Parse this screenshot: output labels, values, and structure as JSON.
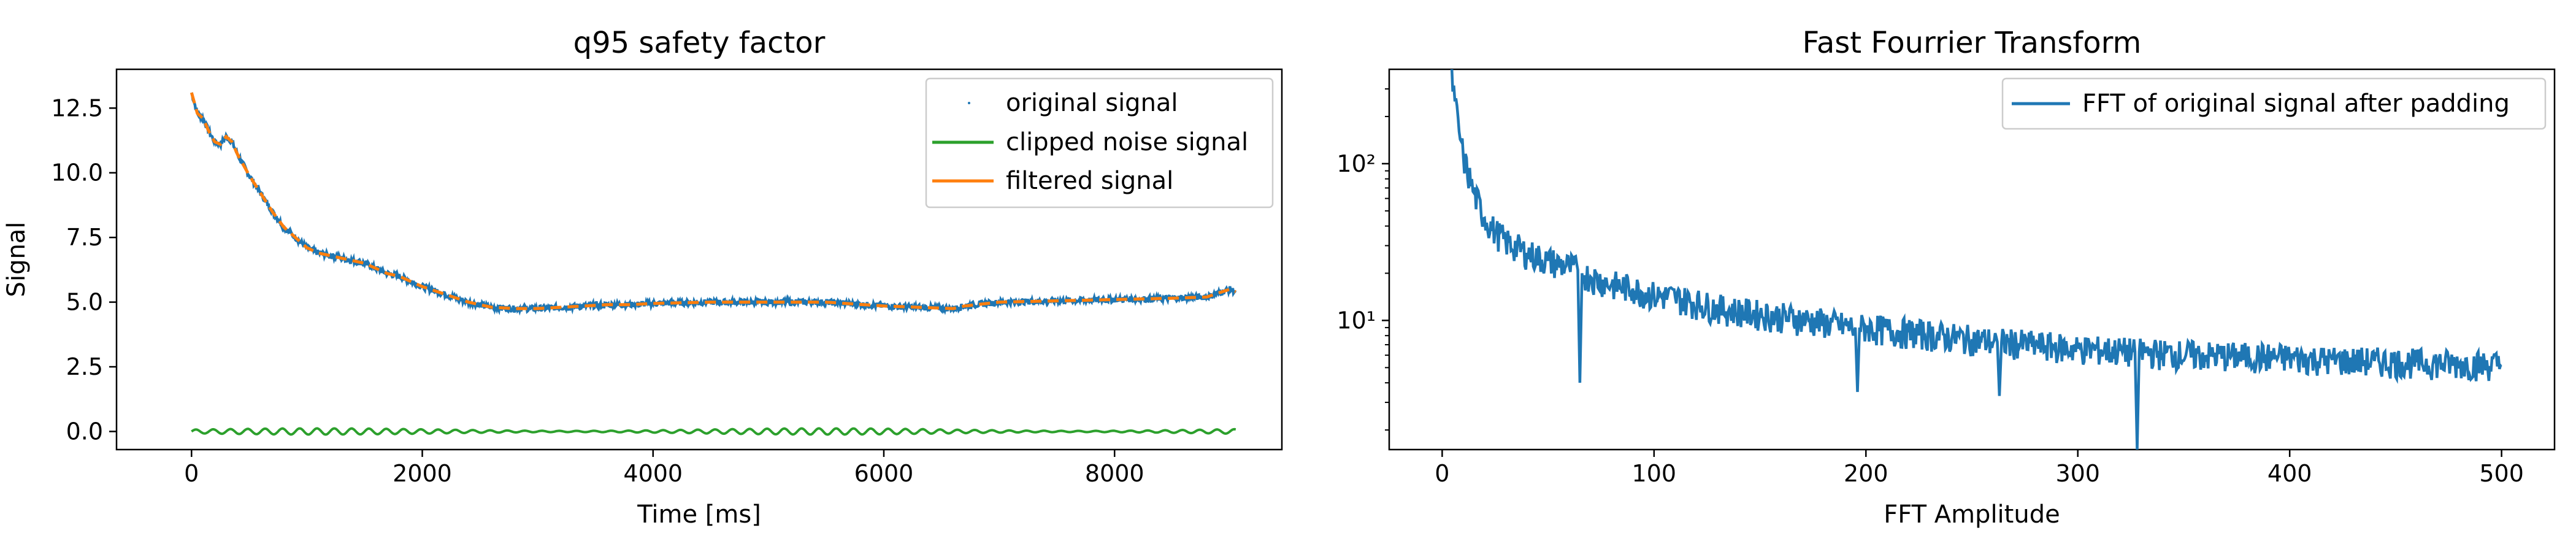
{
  "chart_data": [
    {
      "type": "line",
      "title": "q95 safety factor",
      "xlabel": "Time [ms]",
      "ylabel": "Signal",
      "xlim": [
        -650,
        9450
      ],
      "ylim": [
        -0.7,
        14.0
      ],
      "xticks": [
        0,
        2000,
        4000,
        6000,
        8000
      ],
      "xtick_labels": [
        "0",
        "2000",
        "4000",
        "6000",
        "8000"
      ],
      "yticks": [
        0.0,
        2.5,
        5.0,
        7.5,
        10.0,
        12.5
      ],
      "ytick_labels": [
        "0.0",
        "2.5",
        "5.0",
        "7.5",
        "10.0",
        "12.5"
      ],
      "grid": false,
      "legend_position": "top-right",
      "series": [
        {
          "name": "original signal",
          "style": "points",
          "color": "#1f77b4",
          "x": [
            0,
            50,
            100,
            150,
            200,
            250,
            300,
            350,
            400,
            500,
            600,
            700,
            800,
            900,
            1000,
            1100,
            1200,
            1300,
            1400,
            1500,
            1600,
            1700,
            1800,
            1900,
            2000,
            2200,
            2400,
            2600,
            2800,
            3000,
            3200,
            3400,
            3600,
            3800,
            4000,
            4500,
            5000,
            5500,
            6000,
            6300,
            6600,
            6700,
            7000,
            7500,
            8000,
            8500,
            8800,
            8900,
            9000,
            9050
          ],
          "y": [
            13.1,
            12.3,
            12.1,
            11.6,
            11.2,
            11.1,
            11.4,
            11.2,
            10.7,
            9.9,
            9.2,
            8.5,
            7.9,
            7.5,
            7.1,
            6.9,
            6.8,
            6.7,
            6.6,
            6.5,
            6.3,
            6.1,
            6.0,
            5.8,
            5.6,
            5.3,
            5.0,
            4.8,
            4.75,
            4.75,
            4.8,
            4.85,
            4.9,
            4.9,
            4.95,
            5.0,
            5.0,
            5.0,
            4.85,
            4.8,
            4.75,
            4.85,
            5.0,
            5.05,
            5.1,
            5.15,
            5.2,
            5.35,
            5.5,
            5.4
          ]
        },
        {
          "name": "clipped noise signal",
          "style": "line",
          "color": "#2ca02c",
          "x_start": 0,
          "x_end": 9050,
          "amplitude": 0.12,
          "period": 150
        },
        {
          "name": "filtered signal",
          "style": "line",
          "color": "#ff7f0e",
          "x": [
            0,
            50,
            100,
            150,
            200,
            250,
            300,
            350,
            400,
            500,
            600,
            700,
            800,
            900,
            1000,
            1100,
            1200,
            1300,
            1400,
            1500,
            1600,
            1700,
            1800,
            1900,
            2000,
            2200,
            2400,
            2600,
            2800,
            3000,
            3200,
            3400,
            3600,
            3800,
            4000,
            4500,
            5000,
            5500,
            6000,
            6300,
            6600,
            6700,
            7000,
            7500,
            8000,
            8500,
            8800,
            8900,
            9000,
            9050
          ],
          "y": [
            13.1,
            12.3,
            12.1,
            11.6,
            11.2,
            11.1,
            11.4,
            11.2,
            10.7,
            9.9,
            9.2,
            8.5,
            7.9,
            7.5,
            7.1,
            6.9,
            6.8,
            6.7,
            6.6,
            6.5,
            6.3,
            6.1,
            6.0,
            5.8,
            5.6,
            5.3,
            5.0,
            4.8,
            4.75,
            4.75,
            4.8,
            4.85,
            4.9,
            4.9,
            4.95,
            5.0,
            5.0,
            5.0,
            4.85,
            4.8,
            4.75,
            4.85,
            5.0,
            5.05,
            5.1,
            5.15,
            5.2,
            5.35,
            5.5,
            5.4
          ]
        }
      ]
    },
    {
      "type": "line",
      "title": "Fast Fourrier Transform",
      "xlabel": "FFT Amplitude",
      "ylabel": "",
      "xlim": [
        -25,
        525
      ],
      "ylim": [
        1.5,
        400
      ],
      "yscale": "log",
      "xticks": [
        0,
        100,
        200,
        300,
        400,
        500
      ],
      "xtick_labels": [
        "0",
        "100",
        "200",
        "300",
        "400",
        "500"
      ],
      "yticks": [
        10,
        100
      ],
      "ytick_labels": [
        "10¹",
        "10²"
      ],
      "grid": false,
      "legend_position": "top-right",
      "series": [
        {
          "name": "FFT of original signal after padding",
          "style": "line",
          "color": "#1f77b4",
          "x": [
            4,
            6,
            8,
            10,
            15,
            20,
            25,
            30,
            40,
            50,
            60,
            64,
            65,
            66,
            70,
            80,
            90,
            100,
            110,
            130,
            150,
            170,
            195,
            196,
            197,
            200,
            220,
            250,
            262,
            263,
            264,
            280,
            300,
            320,
            327,
            328,
            329,
            340,
            360,
            380,
            400,
            420,
            440,
            460,
            480,
            500
          ],
          "y": [
            400,
            250,
            160,
            110,
            65,
            45,
            37,
            32,
            27,
            24,
            22,
            21,
            4,
            20,
            19,
            17,
            16,
            14.5,
            14,
            12,
            11,
            10.2,
            9,
            3.5,
            9,
            9,
            8.4,
            7.6,
            7.3,
            3.3,
            7.3,
            7,
            6.6,
            6.4,
            6.3,
            1.5,
            6.3,
            6.2,
            6,
            5.9,
            5.8,
            5.6,
            5.5,
            5.4,
            5.3,
            5.2
          ]
        }
      ]
    }
  ]
}
